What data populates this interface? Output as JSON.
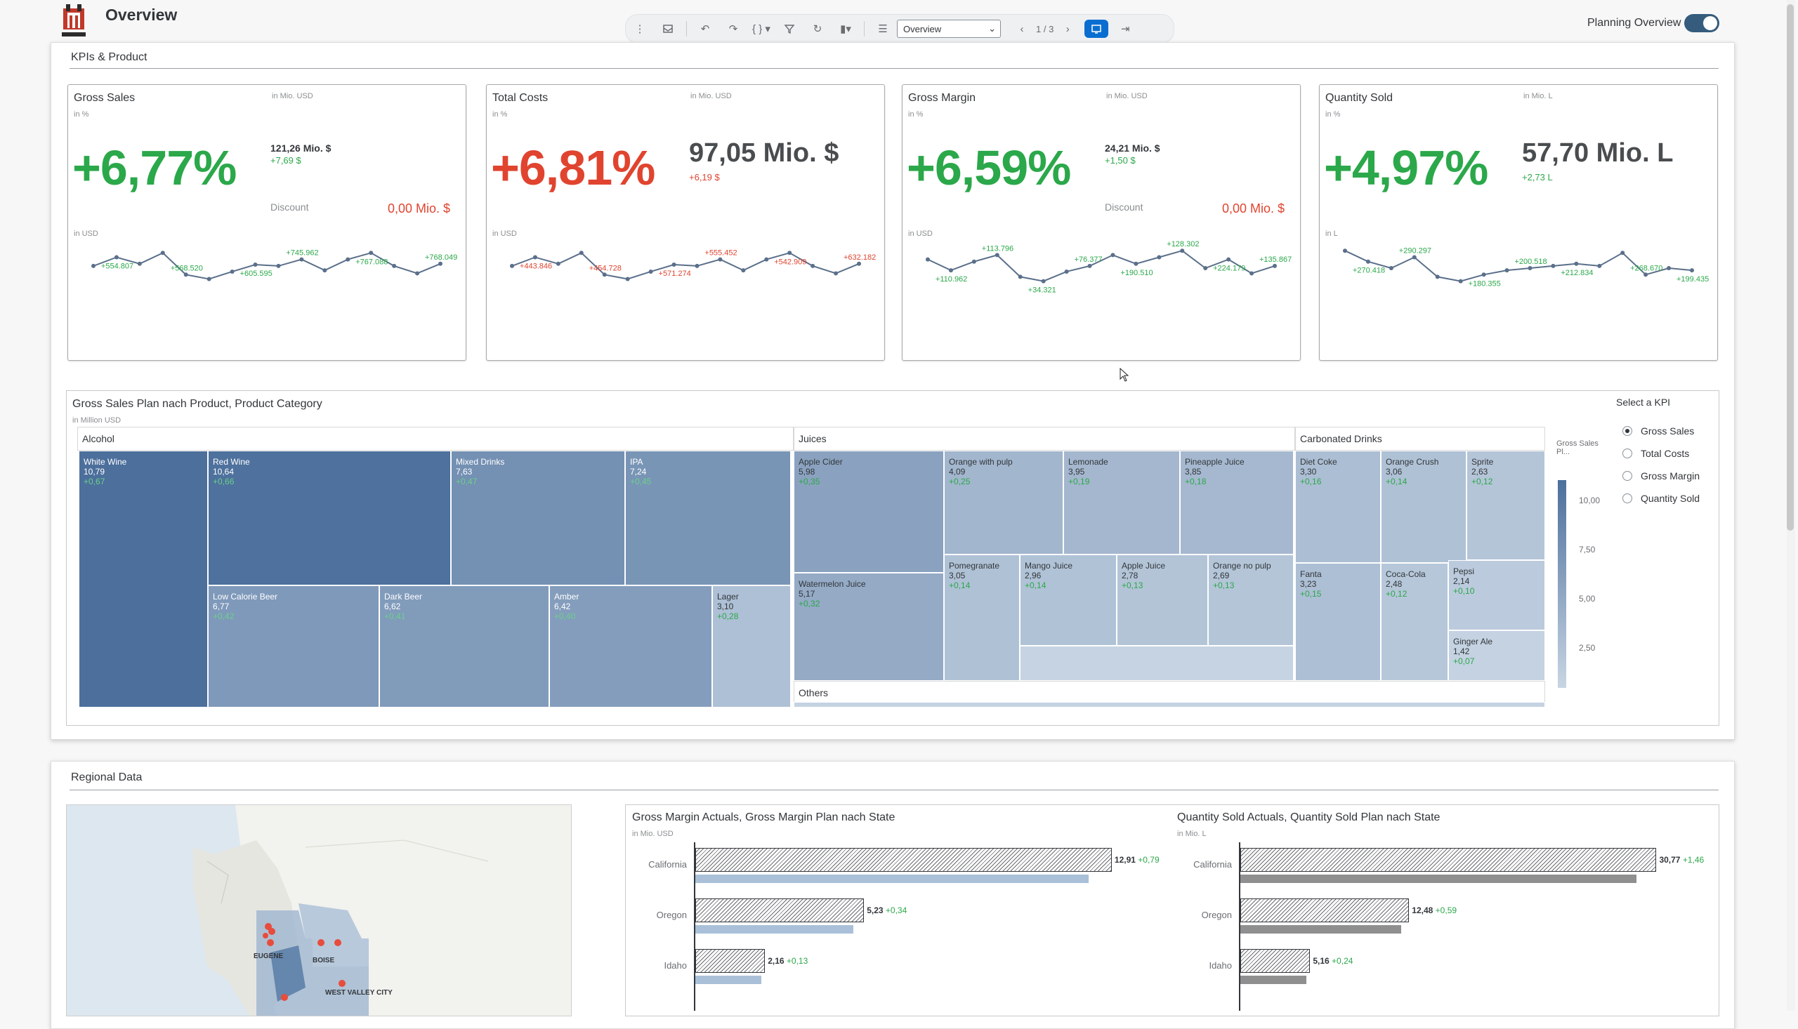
{
  "header": {
    "title": "Overview",
    "page_select": "Overview",
    "pager": "1 / 3",
    "planning_label": "Planning Overview",
    "planning_on": true
  },
  "kpi_section": {
    "title": "KPIs & Product",
    "cards": [
      {
        "title": "Gross Sales",
        "unit": "in Mio. USD",
        "pct_unit": "in %",
        "pct": "+6,77%",
        "pct_color": "#2ba84a",
        "amount": "121,26 Mio. $",
        "amount_delta": "+7,69 $",
        "delta_color": "#2ba84a",
        "discount_label": "Discount",
        "discount_value": "0,00 Mio. $",
        "line_unit": "in USD",
        "spark_color": "#2ba84a",
        "spark_labels": [
          "+554.807",
          "+568.520",
          "+605.595",
          "+745.962",
          "+767.088",
          "+768.049"
        ],
        "spark": [
          0.55,
          0.75,
          0.6,
          0.85,
          0.35,
          0.25,
          0.42,
          0.58,
          0.55,
          0.7,
          0.45,
          0.7,
          0.85,
          0.55,
          0.38,
          0.6
        ]
      },
      {
        "title": "Total Costs",
        "unit": "in Mio. USD",
        "pct_unit": "in %",
        "pct": "+6,81%",
        "pct_color": "#e0442f",
        "amount": "97,05 Mio. $",
        "amount_delta": "+6,19 $",
        "delta_color": "#e0442f",
        "discount_label": "",
        "discount_value": "",
        "line_unit": "in USD",
        "spark_color": "#e0442f",
        "spark_labels": [
          "+443.846",
          "+454.728",
          "+571.274",
          "+555.452",
          "+542.909",
          "+632.182"
        ],
        "spark": [
          0.55,
          0.75,
          0.6,
          0.85,
          0.35,
          0.25,
          0.42,
          0.58,
          0.55,
          0.7,
          0.45,
          0.7,
          0.85,
          0.55,
          0.38,
          0.6
        ]
      },
      {
        "title": "Gross Margin",
        "unit": "in Mio. USD",
        "pct_unit": "in %",
        "pct": "+6,59%",
        "pct_color": "#2ba84a",
        "amount": "24,21 Mio. $",
        "amount_delta": "+1,50 $",
        "delta_color": "#2ba84a",
        "discount_label": "Discount",
        "discount_value": "0,00 Mio. $",
        "line_unit": "in USD",
        "spark_color": "#2ba84a",
        "spark_labels": [
          "+110.962",
          "+113.796",
          "+34.321",
          "+76.377",
          "+190.510",
          "+128.302",
          "+224.179",
          "+135.867"
        ],
        "spark": [
          0.7,
          0.45,
          0.65,
          0.8,
          0.3,
          0.2,
          0.42,
          0.55,
          0.8,
          0.6,
          0.75,
          0.9,
          0.5,
          0.7,
          0.38,
          0.55
        ]
      },
      {
        "title": "Quantity Sold",
        "unit": "in Mio. L",
        "pct_unit": "in %",
        "pct": "+4,97%",
        "pct_color": "#2ba84a",
        "amount": "57,70 Mio. L",
        "amount_delta": "+2,73 L",
        "delta_color": "#2ba84a",
        "discount_label": "",
        "discount_value": "",
        "line_unit": "in L",
        "spark_color": "#2ba84a",
        "spark_labels": [
          "+270.418",
          "+290.297",
          "+180.355",
          "+200.518",
          "+212.834",
          "+268.670",
          "+199.435"
        ],
        "spark": [
          0.9,
          0.65,
          0.5,
          0.75,
          0.3,
          0.2,
          0.35,
          0.45,
          0.5,
          0.55,
          0.6,
          0.55,
          0.85,
          0.35,
          0.5,
          0.45
        ]
      }
    ]
  },
  "treemap": {
    "title": "Gross Sales Plan nach Product, Product Category",
    "unit": "in Million USD",
    "select_kpi_label": "Select a KPI",
    "kpi_options": [
      "Gross Sales",
      "Total Costs",
      "Gross Margin",
      "Quantity Sold"
    ],
    "selected_kpi": 0,
    "legend_title": "Gross Sales Pl...",
    "legend_ticks": [
      "10,00",
      "7,50",
      "5,00",
      "2,50"
    ],
    "groups": [
      "Alcohol",
      "Juices",
      "Carbonated Drinks",
      "Others"
    ],
    "tiles": [
      {
        "name": "White Wine",
        "value": "10,79",
        "delta": "+0,67"
      },
      {
        "name": "Red Wine",
        "value": "10,64",
        "delta": "+0,66"
      },
      {
        "name": "Mixed Drinks",
        "value": "7,63",
        "delta": "+0,47"
      },
      {
        "name": "IPA",
        "value": "7,24",
        "delta": "+0,45"
      },
      {
        "name": "Low Calorie Beer",
        "value": "6,77",
        "delta": "+0,42"
      },
      {
        "name": "Dark Beer",
        "value": "6,62",
        "delta": "+0,41"
      },
      {
        "name": "Amber",
        "value": "6,42",
        "delta": "+0,40"
      },
      {
        "name": "Lager",
        "value": "3,10",
        "delta": "+0,28"
      },
      {
        "name": "Apple Cider",
        "value": "5,98",
        "delta": "+0,35"
      },
      {
        "name": "Watermelon Juice",
        "value": "5,17",
        "delta": "+0,32"
      },
      {
        "name": "Orange with pulp",
        "value": "4,09",
        "delta": "+0,25"
      },
      {
        "name": "Lemonade",
        "value": "3,95",
        "delta": "+0,19"
      },
      {
        "name": "Pineapple Juice",
        "value": "3,85",
        "delta": "+0,18"
      },
      {
        "name": "Pomegranate",
        "value": "3,05",
        "delta": "+0,14"
      },
      {
        "name": "Mango Juice",
        "value": "2,96",
        "delta": "+0,14"
      },
      {
        "name": "Apple Juice",
        "value": "2,78",
        "delta": "+0,13"
      },
      {
        "name": "Orange no pulp",
        "value": "2,69",
        "delta": "+0,13"
      },
      {
        "name": "Diet Coke",
        "value": "3,30",
        "delta": "+0,16"
      },
      {
        "name": "Orange Crush",
        "value": "3,06",
        "delta": "+0,14"
      },
      {
        "name": "Sprite",
        "value": "2,63",
        "delta": "+0,12"
      },
      {
        "name": "Fanta",
        "value": "3,23",
        "delta": "+0,15"
      },
      {
        "name": "Coca-Cola",
        "value": "2,48",
        "delta": "+0,12"
      },
      {
        "name": "Pepsi",
        "value": "2,14",
        "delta": "+0,10"
      },
      {
        "name": "Ginger Ale",
        "value": "1,42",
        "delta": "+0,07"
      }
    ]
  },
  "regional": {
    "title": "Regional Data",
    "map_labels": [
      "EUGENE",
      "BOISE",
      "WEST VALLEY CITY"
    ],
    "charts": [
      {
        "title": "Gross Margin Actuals, Gross Margin Plan nach State",
        "unit": "in Mio. USD",
        "rows": [
          {
            "state": "California",
            "actual": 12.91,
            "label": "12,91",
            "delta": "+0,79",
            "plan": 12.2
          },
          {
            "state": "Oregon",
            "actual": 5.23,
            "label": "5,23",
            "delta": "+0,34",
            "plan": 4.9
          },
          {
            "state": "Idaho",
            "actual": 2.16,
            "label": "2,16",
            "delta": "+0,13",
            "plan": 2.05
          }
        ],
        "max": 13.5,
        "plan_color": "#a9c0d8"
      },
      {
        "title": "Quantity Sold Actuals, Quantity Sold Plan nach State",
        "unit": "in Mio. L",
        "rows": [
          {
            "state": "California",
            "actual": 30.77,
            "label": "30,77",
            "delta": "+1,46",
            "plan": 29.3
          },
          {
            "state": "Oregon",
            "actual": 12.48,
            "label": "12,48",
            "delta": "+0,59",
            "plan": 11.9
          },
          {
            "state": "Idaho",
            "actual": 5.16,
            "label": "5,16",
            "delta": "+0,24",
            "plan": 4.9
          }
        ],
        "max": 32.2,
        "plan_color": "#8f8f8f"
      }
    ]
  }
}
